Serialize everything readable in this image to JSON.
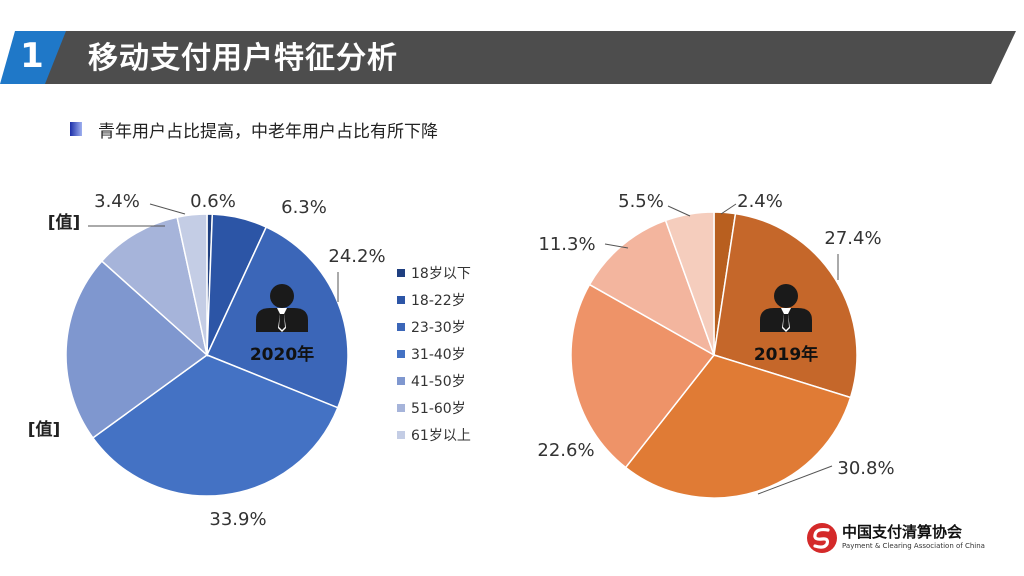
{
  "header": {
    "section_number": "1",
    "title": "移动支付用户特征分析"
  },
  "subtitle": "青年用户占比提高，中老年用户占比有所下降",
  "colors": {
    "title_bar": "#4d4d4d",
    "number_badge": "#1f78c8",
    "series_2020": [
      "#1f3f80",
      "#2c55a6",
      "#3b66b8",
      "#4472c4",
      "#7f97cf",
      "#a6b4da",
      "#c4cde5"
    ],
    "series_2019": [
      "#b85f1f",
      "#c5672a",
      "#e07b35",
      "#ee9368",
      "#f3b59e",
      "#f5cdbd"
    ]
  },
  "icons": {
    "user_2020": "businessman-icon",
    "user_2019": "businessman-icon",
    "logo": "payment-clearing-logo-icon"
  },
  "legend": [
    "18岁以下",
    "18-22岁",
    "23-30岁",
    "31-40岁",
    "41-50岁",
    "51-60岁",
    "61岁以上"
  ],
  "chart_data": [
    {
      "type": "pie",
      "title": "2020年",
      "categories": [
        "18岁以下",
        "18-22岁",
        "23-30岁",
        "31-40岁",
        "41-50岁",
        "51-60岁",
        "61岁以上"
      ],
      "values": [
        0.6,
        6.3,
        24.2,
        33.9,
        21.6,
        10.0,
        3.4
      ],
      "data_labels": [
        "0.6%",
        "6.3%",
        "24.2%",
        "33.9%",
        "[值]",
        "[值]",
        "3.4%"
      ]
    },
    {
      "type": "pie",
      "title": "2019年",
      "categories": [
        "18-22岁",
        "23-30岁",
        "31-40岁",
        "41-50岁",
        "51-60岁",
        "61岁以上"
      ],
      "values": [
        2.4,
        27.4,
        30.8,
        22.6,
        11.3,
        5.5
      ],
      "data_labels": [
        "2.4%",
        "27.4%",
        "30.8%",
        "22.6%",
        "11.3%",
        "5.5%"
      ]
    }
  ],
  "logo": {
    "name_cn": "中国支付清算协会",
    "name_en": "Payment & Clearing Association of China"
  }
}
